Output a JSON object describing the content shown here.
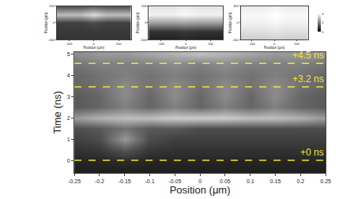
{
  "chart_data": [
    {
      "type": "heatmap",
      "x_label": "Position (μm)",
      "y_label": "Position (μm)",
      "x": [
        -300,
        -200,
        -100,
        0,
        100,
        200,
        300
      ],
      "y": [
        -100,
        -50,
        0,
        50,
        100
      ],
      "z": [
        [
          0.8,
          0.8,
          0.8,
          0.8,
          0.8,
          0.8,
          0.8
        ],
        [
          0.9,
          0.9,
          0.9,
          0.9,
          0.9,
          0.9,
          0.9
        ],
        [
          1.0,
          1.0,
          1.0,
          1.2,
          1.0,
          1.0,
          1.0
        ],
        [
          3.0,
          3.0,
          3.0,
          3.5,
          3.0,
          3.0,
          3.0
        ],
        [
          1.2,
          1.2,
          1.2,
          1.4,
          1.2,
          1.2,
          1.2
        ]
      ],
      "xlim": [
        -300,
        300
      ],
      "xticks": [
        -200,
        0,
        200
      ],
      "ylim": [
        -100,
        100
      ],
      "yticks": [
        -100,
        0,
        100
      ],
      "zlim": [
        0,
        4
      ]
    },
    {
      "type": "heatmap",
      "x_label": "Position (μm)",
      "y_label": "Position (μm)",
      "x": [
        -300,
        -200,
        -100,
        0,
        100,
        200,
        300
      ],
      "y": [
        -100,
        -50,
        0,
        50,
        100
      ],
      "z": [
        [
          0.5,
          0.5,
          0.5,
          0.6,
          0.5,
          0.5,
          0.5
        ],
        [
          0.8,
          0.8,
          0.8,
          0.9,
          0.8,
          0.8,
          0.8
        ],
        [
          2.5,
          2.5,
          2.5,
          2.6,
          2.5,
          2.5,
          2.5
        ],
        [
          3.8,
          3.8,
          3.8,
          3.9,
          3.8,
          3.8,
          3.8
        ],
        [
          3.6,
          3.6,
          3.6,
          3.7,
          3.6,
          3.6,
          3.6
        ]
      ],
      "xlim": [
        -300,
        300
      ],
      "xticks": [
        -200,
        0,
        200
      ],
      "ylim": [
        -100,
        100
      ],
      "yticks": [
        -100,
        0,
        100
      ],
      "zlim": [
        0,
        4
      ]
    },
    {
      "type": "heatmap",
      "x_label": "Position (μm)",
      "y_label": "Position (μm)",
      "x": [
        -300,
        -200,
        -100,
        0,
        100,
        200,
        300
      ],
      "y": [
        -100,
        -50,
        0,
        50,
        100
      ],
      "z": [
        [
          3.2,
          3.2,
          3.2,
          3.3,
          3.2,
          3.2,
          3.2
        ],
        [
          3.5,
          3.5,
          3.5,
          3.6,
          3.5,
          3.5,
          3.5
        ],
        [
          3.8,
          3.8,
          3.8,
          3.9,
          3.8,
          3.8,
          3.8
        ],
        [
          3.9,
          3.9,
          3.9,
          4.0,
          3.9,
          3.9,
          3.9
        ],
        [
          3.7,
          3.7,
          3.7,
          3.8,
          3.7,
          3.7,
          3.7
        ]
      ],
      "xlim": [
        -300,
        300
      ],
      "xticks": [
        -200,
        0,
        200
      ],
      "ylim": [
        -100,
        100
      ],
      "yticks": [
        -100,
        0,
        100
      ],
      "zlim": [
        0,
        4
      ],
      "zticks": [
        0,
        2,
        4
      ]
    },
    {
      "type": "heatmap",
      "x_label": "Position (μm)",
      "y_label": "Time (ns)",
      "x": [
        -0.25,
        -0.2,
        -0.15,
        -0.1,
        -0.05,
        0,
        0.05,
        0.1,
        0.15,
        0.2,
        0.25
      ],
      "y": [
        -0.5,
        0,
        0.5,
        1,
        1.5,
        2,
        2.5,
        3,
        3.5,
        4,
        4.5,
        5
      ],
      "z": [
        [
          0.12,
          0.12,
          0.12,
          0.12,
          0.12,
          0.12,
          0.12,
          0.12,
          0.12,
          0.12,
          0.12
        ],
        [
          0.15,
          0.15,
          0.18,
          0.15,
          0.15,
          0.15,
          0.15,
          0.15,
          0.15,
          0.15,
          0.15
        ],
        [
          0.2,
          0.22,
          0.35,
          0.22,
          0.2,
          0.2,
          0.2,
          0.2,
          0.2,
          0.2,
          0.2
        ],
        [
          0.25,
          0.3,
          0.6,
          0.3,
          0.25,
          0.25,
          0.25,
          0.25,
          0.25,
          0.25,
          0.25
        ],
        [
          0.3,
          0.35,
          0.45,
          0.35,
          0.35,
          0.3,
          0.3,
          0.3,
          0.3,
          0.3,
          0.3
        ],
        [
          0.6,
          0.7,
          0.75,
          0.75,
          0.8,
          0.8,
          0.8,
          0.75,
          0.75,
          0.7,
          0.6
        ],
        [
          0.35,
          0.4,
          0.5,
          0.4,
          0.5,
          0.4,
          0.5,
          0.4,
          0.5,
          0.4,
          0.35
        ],
        [
          0.35,
          0.4,
          0.55,
          0.4,
          0.55,
          0.4,
          0.55,
          0.4,
          0.55,
          0.4,
          0.35
        ],
        [
          0.4,
          0.45,
          0.55,
          0.45,
          0.55,
          0.45,
          0.55,
          0.45,
          0.55,
          0.45,
          0.4
        ],
        [
          0.4,
          0.45,
          0.5,
          0.45,
          0.5,
          0.45,
          0.5,
          0.45,
          0.5,
          0.45,
          0.4
        ],
        [
          0.45,
          0.5,
          0.5,
          0.5,
          0.55,
          0.5,
          0.55,
          0.5,
          0.5,
          0.5,
          0.45
        ],
        [
          0.55,
          0.6,
          0.6,
          0.65,
          0.7,
          0.75,
          0.7,
          0.65,
          0.6,
          0.6,
          0.55
        ]
      ],
      "xlim": [
        -0.25,
        0.25
      ],
      "xticks": [
        -0.25,
        -0.2,
        -0.15,
        -0.1,
        -0.05,
        0,
        0.05,
        0.1,
        0.15,
        0.2,
        0.25
      ],
      "ylim": [
        -0.6,
        5.1
      ],
      "yticks": [
        0,
        1,
        2,
        3,
        4,
        5
      ],
      "zlim": [
        0,
        1
      ],
      "color": "#f0e630",
      "line_style": "dash",
      "annotations": [
        {
          "y": 4.55,
          "text": "+4.5 ns"
        },
        {
          "y": 3.45,
          "text": "+3.2 ns"
        },
        {
          "y": 0,
          "text": "+0 ns"
        }
      ]
    }
  ]
}
